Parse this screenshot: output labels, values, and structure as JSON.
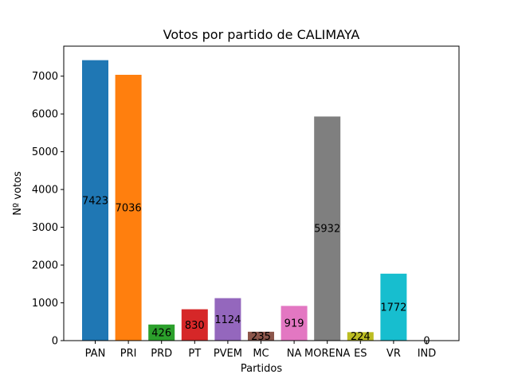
{
  "chart_data": {
    "type": "bar",
    "title": "Votos por partido de CALIMAYA",
    "xlabel": "Partidos",
    "ylabel": "Nº votos",
    "categories": [
      "PAN",
      "PRI",
      "PRD",
      "PT",
      "PVEM",
      "MC",
      "NA",
      "MORENA",
      "ES",
      "VR",
      "IND"
    ],
    "values": [
      7423,
      7036,
      426,
      830,
      1124,
      235,
      919,
      5932,
      224,
      1772,
      0
    ],
    "colors": [
      "#1f77b4",
      "#ff7f0e",
      "#2ca02c",
      "#d62728",
      "#9467bd",
      "#8c564b",
      "#e377c2",
      "#7f7f7f",
      "#bcbd22",
      "#17becf",
      "#1f77b4"
    ],
    "ylim": [
      0,
      7794
    ],
    "yticks": [
      0,
      1000,
      2000,
      3000,
      4000,
      5000,
      6000,
      7000
    ],
    "grid": false,
    "legend": false
  }
}
